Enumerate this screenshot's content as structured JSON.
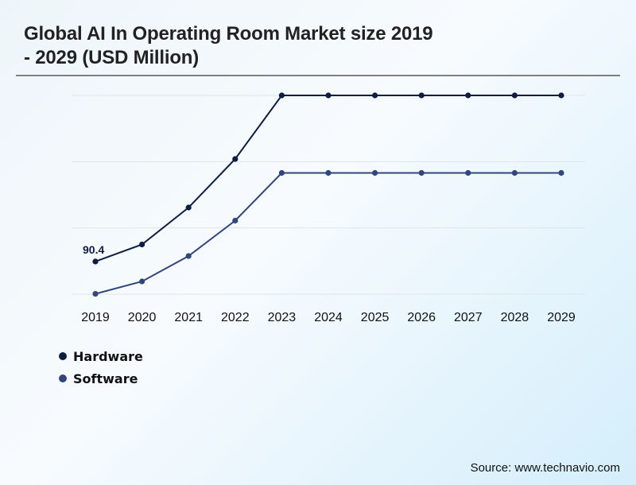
{
  "chart_data": {
    "type": "line",
    "title": "Global AI In Operating Room Market size 2019 - 2029 (USD Million)",
    "xlabel": "",
    "ylabel": "",
    "categories": [
      "2019",
      "2020",
      "2021",
      "2022",
      "2023",
      "2024",
      "2025",
      "2026",
      "2027",
      "2028",
      "2029"
    ],
    "ylim": [
      0,
      550
    ],
    "grid": true,
    "y_gridlines": [
      0,
      183.3,
      366.7,
      550
    ],
    "legend_position": "bottom-left",
    "series": [
      {
        "name": "Hardware",
        "color": "#0f1d40",
        "values": [
          90.4,
          137.5,
          239.8,
          374.0,
          550.0,
          550.0,
          550.0,
          550.0,
          550.0,
          550.0,
          550.0
        ]
      },
      {
        "name": "Software",
        "color": "#33467a",
        "values": [
          1.0,
          35.2,
          105.6,
          203.5,
          335.5,
          335.5,
          335.5,
          335.5,
          335.5,
          335.5,
          335.5
        ]
      }
    ],
    "annotations": [
      {
        "series": "Hardware",
        "category": "2019",
        "text": "90.4"
      }
    ]
  },
  "page": {
    "title_line1": "Global AI In Operating Room Market size 2019",
    "title_line2": "- 2029 (USD Million)",
    "source": "Source: www.technavio.com"
  }
}
